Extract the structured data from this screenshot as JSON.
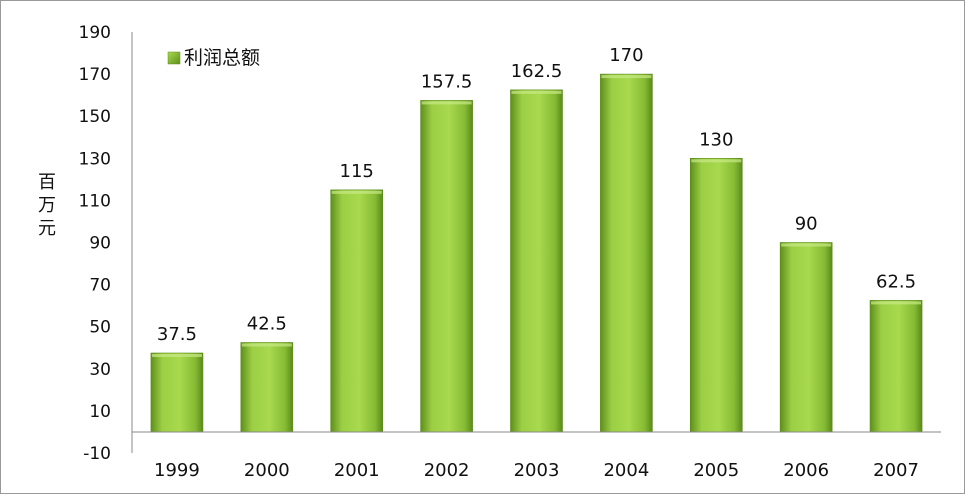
{
  "chart_data": {
    "type": "bar",
    "categories": [
      "1999",
      "2000",
      "2001",
      "2002",
      "2003",
      "2004",
      "2005",
      "2006",
      "2007"
    ],
    "series": [
      {
        "name": "利润总额",
        "values": [
          37.5,
          42.5,
          115,
          157.5,
          162.5,
          170,
          130,
          90,
          62.5
        ],
        "color": "#8dc63f"
      }
    ],
    "data_labels": [
      "37.5",
      "42.5",
      "115",
      "157.5",
      "162.5",
      "170",
      "130",
      "90",
      "62.5"
    ],
    "ylabel": "百万元",
    "ylim": [
      -10,
      190
    ],
    "yticks": [
      "-10",
      "10",
      "30",
      "50",
      "70",
      "90",
      "110",
      "130",
      "150",
      "170",
      "190"
    ],
    "legend_position": "top-left",
    "grid": false
  }
}
